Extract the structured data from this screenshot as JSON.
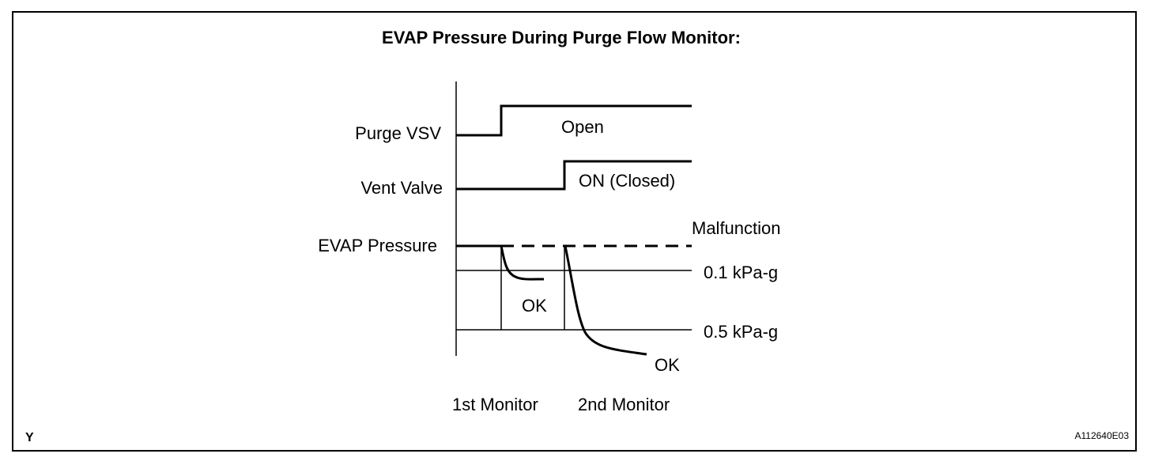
{
  "title": "EVAP Pressure During Purge Flow Monitor:",
  "signals": {
    "purge_vsv": {
      "label": "Purge VSV",
      "state": "Open"
    },
    "vent_valve": {
      "label": "Vent Valve",
      "state": "ON (Closed)"
    },
    "evap_pressure": {
      "label": "EVAP Pressure",
      "malfunction": "Malfunction"
    }
  },
  "thresholds": [
    "0.1 kPa-g",
    "0.5 kPa-g"
  ],
  "results": {
    "first": "OK",
    "second": "OK"
  },
  "monitors": [
    "1st Monitor",
    "2nd Monitor"
  ],
  "corner_mark": "Y",
  "figure_id": "A112640E03"
}
